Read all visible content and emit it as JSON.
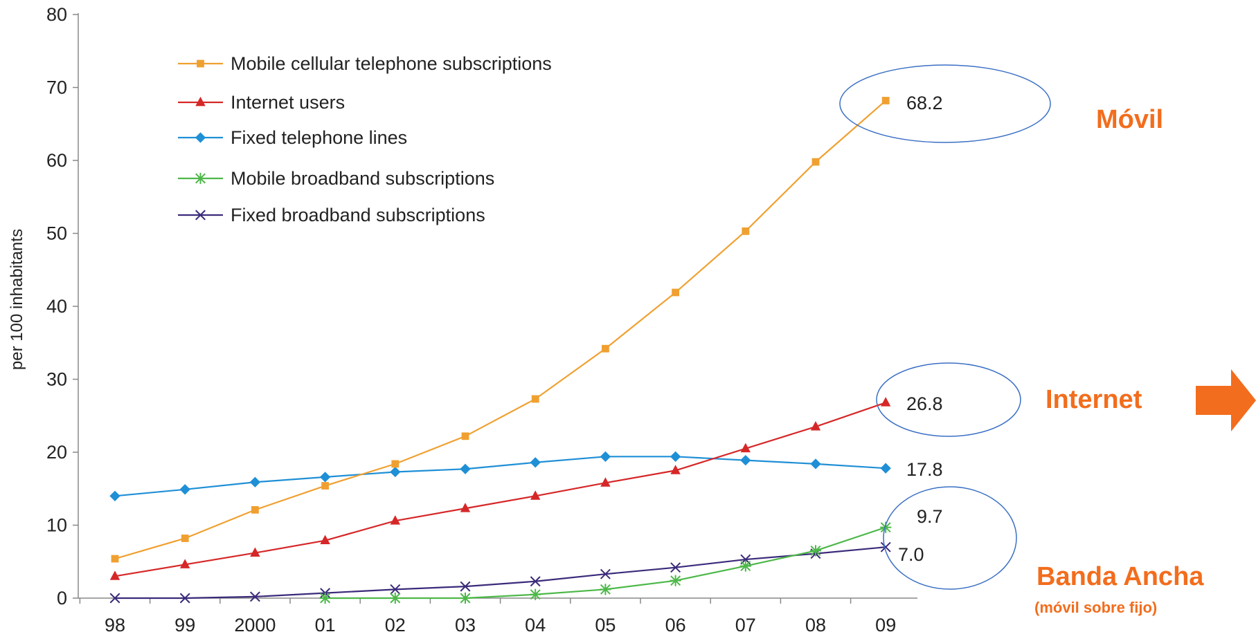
{
  "chart_data": {
    "type": "line",
    "title": "",
    "xlabel": "",
    "ylabel": "per 100 inhabitants",
    "ylim": [
      0,
      80
    ],
    "yticks": [
      0,
      10,
      20,
      30,
      40,
      50,
      60,
      70,
      80
    ],
    "categories": [
      "98",
      "99",
      "2000",
      "01",
      "02",
      "03",
      "04",
      "05",
      "06",
      "07",
      "08",
      "09"
    ],
    "grid": false,
    "legend_position": "top-left",
    "series": [
      {
        "name": "Mobile cellular telephone subscriptions",
        "color": "#f0a030",
        "marker": "square",
        "values": [
          5.4,
          8.2,
          12.1,
          15.4,
          18.4,
          22.2,
          27.3,
          34.2,
          41.9,
          50.3,
          59.8,
          68.2
        ]
      },
      {
        "name": "Internet users",
        "color": "#d62728",
        "marker": "triangle",
        "values": [
          3.0,
          4.6,
          6.2,
          7.9,
          10.6,
          12.3,
          14.0,
          15.8,
          17.5,
          20.5,
          23.5,
          26.8
        ]
      },
      {
        "name": "Fixed telephone lines",
        "color": "#1f8fd6",
        "marker": "diamond",
        "values": [
          14.0,
          14.9,
          15.9,
          16.6,
          17.3,
          17.7,
          18.6,
          19.4,
          19.4,
          18.9,
          18.4,
          17.8
        ]
      },
      {
        "name": "Mobile broadband subscriptions",
        "color": "#4cb848",
        "marker": "asterisk",
        "values": [
          null,
          null,
          null,
          0.0,
          0.0,
          0.0,
          0.5,
          1.2,
          2.4,
          4.4,
          6.5,
          9.7
        ]
      },
      {
        "name": "Fixed broadband subscriptions",
        "color": "#3b2a7a",
        "marker": "x",
        "values": [
          0.0,
          0.0,
          0.2,
          0.7,
          1.2,
          1.6,
          2.3,
          3.3,
          4.2,
          5.3,
          6.1,
          7.0
        ]
      }
    ],
    "end_labels": [
      "68.2",
      "26.8",
      "17.8",
      "9.7",
      "7.0"
    ],
    "annotations": {
      "movil": "Móvil",
      "internet": "Internet",
      "banda_ancha": "Banda Ancha",
      "banda_ancha_sub": "(móvil sobre fijo)"
    },
    "highlight_color": "#3a6fc4",
    "accent_color": "#f26d1d"
  }
}
